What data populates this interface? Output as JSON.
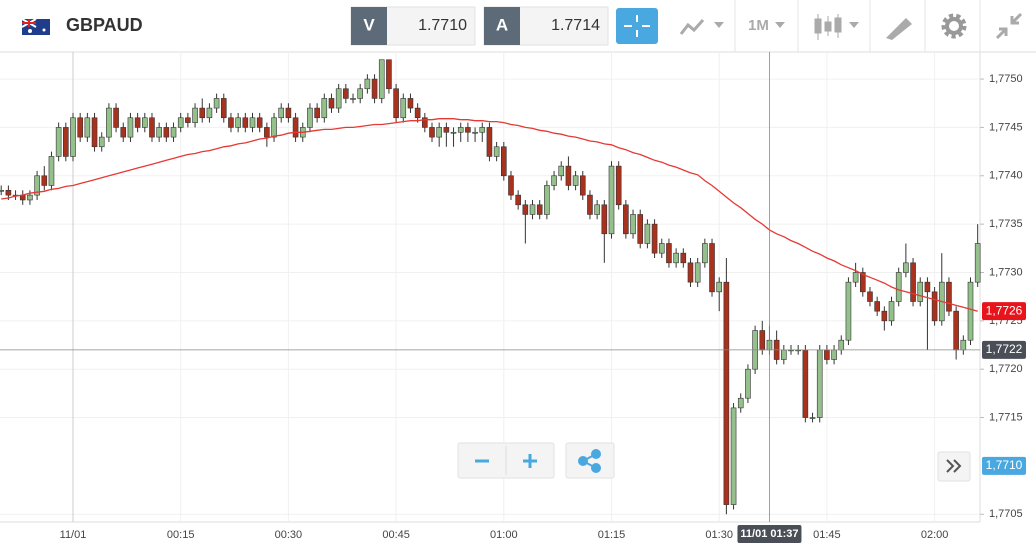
{
  "header": {
    "symbol": "GBPAUD",
    "bid_label": "V",
    "bid": "1.7710",
    "ask_label": "A",
    "ask": "1.7714",
    "timeframe": "1M"
  },
  "chart_data": {
    "type": "candlestick",
    "categories": [
      null,
      null,
      null,
      null,
      null,
      null,
      null,
      null,
      null,
      null,
      "11/01",
      null,
      null,
      null,
      null,
      null,
      null,
      null,
      null,
      null,
      null,
      null,
      null,
      null,
      null,
      "00:15",
      null,
      null,
      null,
      null,
      null,
      null,
      null,
      null,
      null,
      null,
      null,
      null,
      null,
      null,
      "00:30",
      null,
      null,
      null,
      null,
      null,
      null,
      null,
      null,
      null,
      null,
      null,
      null,
      null,
      null,
      "00:45",
      null,
      null,
      null,
      null,
      null,
      null,
      null,
      null,
      null,
      null,
      null,
      null,
      null,
      null,
      "01:00",
      null,
      null,
      null,
      null,
      null,
      null,
      null,
      null,
      null,
      null,
      null,
      null,
      null,
      null,
      "01:15",
      null,
      null,
      null,
      null,
      null,
      null,
      null,
      null,
      null,
      null,
      null,
      null,
      null,
      null,
      "01:30",
      null,
      null,
      null,
      null,
      null,
      null,
      null,
      null,
      null,
      null,
      null,
      null,
      null,
      null,
      "01:45",
      null,
      null,
      null,
      null,
      null,
      null,
      null,
      null,
      null,
      null,
      null,
      null,
      null,
      null,
      "02:00",
      null,
      null,
      null,
      null,
      null,
      null
    ],
    "open": [
      1.77385,
      1.77385,
      1.7738,
      1.7738,
      1.77375,
      1.7738,
      1.774,
      1.7739,
      1.7742,
      1.7745,
      1.7742,
      1.7746,
      1.7744,
      1.7746,
      1.7743,
      1.7744,
      1.7747,
      1.7745,
      1.7744,
      1.7746,
      1.7745,
      1.7746,
      1.7744,
      1.7745,
      1.7744,
      1.7745,
      1.7746,
      1.77455,
      1.7747,
      1.7746,
      1.7747,
      1.7748,
      1.7746,
      1.7745,
      1.7746,
      1.7745,
      1.7746,
      1.7745,
      1.7744,
      1.7746,
      1.7747,
      1.7746,
      1.7744,
      1.7745,
      1.7747,
      1.7746,
      1.7748,
      1.7747,
      1.7749,
      1.7748,
      1.7748,
      1.7749,
      1.775,
      1.7748,
      1.7752,
      1.7749,
      1.7746,
      1.7748,
      1.7747,
      1.7746,
      1.7745,
      1.7744,
      1.7745,
      1.77445,
      1.77445,
      1.7745,
      1.77445,
      1.77445,
      1.7745,
      1.7742,
      1.7743,
      1.774,
      1.7738,
      1.7737,
      1.7736,
      1.7737,
      1.7736,
      1.7739,
      1.774,
      1.7741,
      1.7739,
      1.774,
      1.7738,
      1.7736,
      1.7737,
      1.7734,
      1.7741,
      1.7737,
      1.7734,
      1.7736,
      1.7733,
      1.7735,
      1.7732,
      1.7733,
      1.7731,
      1.7732,
      1.7731,
      1.7729,
      1.7731,
      1.7733,
      1.7728,
      1.7729,
      1.7706,
      1.7716,
      1.7717,
      1.772,
      1.7724,
      1.7722,
      1.7723,
      1.7721,
      1.7722,
      1.7722,
      1.7722,
      1.7715,
      1.7715,
      1.7722,
      1.7721,
      1.7722,
      1.7723,
      1.7729,
      1.773,
      1.7728,
      1.7727,
      1.7726,
      1.7725,
      1.7727,
      1.773,
      1.7731,
      1.7727,
      1.7729,
      1.7728,
      1.7725,
      1.7729,
      1.7726,
      1.7722,
      1.7723,
      1.7729
    ],
    "high": [
      1.7739,
      1.7739,
      1.77385,
      1.77385,
      1.77385,
      1.77405,
      1.7741,
      1.77425,
      1.77455,
      1.77455,
      1.77465,
      1.77465,
      1.77465,
      1.77465,
      1.77445,
      1.77475,
      1.77475,
      1.77455,
      1.77465,
      1.77465,
      1.77465,
      1.77465,
      1.77455,
      1.77455,
      1.77455,
      1.77465,
      1.77465,
      1.77475,
      1.7748,
      1.77475,
      1.77485,
      1.77485,
      1.77465,
      1.77465,
      1.77465,
      1.77465,
      1.77465,
      1.77455,
      1.77465,
      1.77475,
      1.77475,
      1.77465,
      1.77455,
      1.77475,
      1.77475,
      1.77485,
      1.77485,
      1.77495,
      1.77495,
      1.77485,
      1.77495,
      1.77505,
      1.77505,
      1.7752,
      1.7752,
      1.77495,
      1.77485,
      1.77485,
      1.77475,
      1.77465,
      1.77455,
      1.77455,
      1.77455,
      1.7745,
      1.77455,
      1.77455,
      1.7745,
      1.77455,
      1.77455,
      1.77435,
      1.77435,
      1.77405,
      1.77385,
      1.77375,
      1.77375,
      1.77375,
      1.77395,
      1.77405,
      1.77415,
      1.7742,
      1.77405,
      1.77405,
      1.77385,
      1.77375,
      1.77375,
      1.77415,
      1.77415,
      1.77375,
      1.77365,
      1.77365,
      1.77355,
      1.77355,
      1.77335,
      1.77335,
      1.77325,
      1.77325,
      1.77315,
      1.77315,
      1.77335,
      1.77335,
      1.77295,
      1.77315,
      1.77165,
      1.77175,
      1.77205,
      1.77245,
      1.7725,
      1.77245,
      1.7724,
      1.77225,
      1.77225,
      1.77225,
      1.77225,
      1.77155,
      1.77225,
      1.77225,
      1.77225,
      1.77235,
      1.77295,
      1.7731,
      1.77305,
      1.77285,
      1.77275,
      1.77265,
      1.77275,
      1.77305,
      1.7733,
      1.77315,
      1.77295,
      1.77295,
      1.77285,
      1.7732,
      1.77295,
      1.77265,
      1.77235,
      1.77295,
      1.7735
    ],
    "low": [
      1.7738,
      1.77375,
      1.77375,
      1.7737,
      1.7737,
      1.77375,
      1.77385,
      1.77385,
      1.77415,
      1.77415,
      1.77415,
      1.77435,
      1.77435,
      1.77425,
      1.77425,
      1.77435,
      1.77445,
      1.77435,
      1.77435,
      1.77445,
      1.77445,
      1.77435,
      1.77435,
      1.77435,
      1.77435,
      1.77445,
      1.7745,
      1.7745,
      1.77455,
      1.77455,
      1.77465,
      1.77455,
      1.77445,
      1.77445,
      1.77445,
      1.77445,
      1.77445,
      1.7743,
      1.77435,
      1.77455,
      1.77455,
      1.77435,
      1.77435,
      1.77445,
      1.77455,
      1.77455,
      1.77465,
      1.77465,
      1.77475,
      1.77475,
      1.77475,
      1.77485,
      1.77475,
      1.77475,
      1.77485,
      1.77455,
      1.77455,
      1.77465,
      1.77455,
      1.77445,
      1.77435,
      1.7743,
      1.7743,
      1.7743,
      1.77435,
      1.77435,
      1.77435,
      1.77435,
      1.77415,
      1.77415,
      1.77395,
      1.77375,
      1.77365,
      1.7733,
      1.77355,
      1.77355,
      1.77355,
      1.77385,
      1.77395,
      1.77385,
      1.77385,
      1.77375,
      1.77355,
      1.77355,
      1.7731,
      1.77335,
      1.77365,
      1.77335,
      1.77335,
      1.77325,
      1.77325,
      1.77315,
      1.77315,
      1.77305,
      1.77305,
      1.77305,
      1.77285,
      1.77285,
      1.77305,
      1.77275,
      1.7726,
      1.7705,
      1.77055,
      1.77155,
      1.77165,
      1.77195,
      1.77215,
      1.77215,
      1.77205,
      1.77205,
      1.77215,
      1.77215,
      1.77145,
      1.77145,
      1.77145,
      1.77205,
      1.77205,
      1.77215,
      1.77225,
      1.77285,
      1.77275,
      1.77265,
      1.77255,
      1.7724,
      1.77245,
      1.77265,
      1.77295,
      1.77265,
      1.77265,
      1.7722,
      1.77245,
      1.77245,
      1.77255,
      1.7721,
      1.77215,
      1.77225,
      1.77285
    ],
    "close": [
      1.77385,
      1.7738,
      1.7738,
      1.77375,
      1.7738,
      1.774,
      1.7739,
      1.7742,
      1.7745,
      1.7742,
      1.7746,
      1.7744,
      1.7746,
      1.7743,
      1.7744,
      1.7747,
      1.7745,
      1.7744,
      1.7746,
      1.7745,
      1.7746,
      1.7744,
      1.7745,
      1.7744,
      1.7745,
      1.7746,
      1.77455,
      1.7747,
      1.7746,
      1.7747,
      1.7748,
      1.7746,
      1.7745,
      1.7746,
      1.7745,
      1.7746,
      1.7745,
      1.7744,
      1.7746,
      1.7747,
      1.7746,
      1.7744,
      1.7745,
      1.7747,
      1.7746,
      1.7748,
      1.7747,
      1.7749,
      1.7748,
      1.7748,
      1.7749,
      1.775,
      1.7748,
      1.7752,
      1.7749,
      1.7746,
      1.7748,
      1.7747,
      1.7746,
      1.7745,
      1.7744,
      1.7745,
      1.77445,
      1.77445,
      1.7745,
      1.77445,
      1.77445,
      1.7745,
      1.7742,
      1.7743,
      1.774,
      1.7738,
      1.7737,
      1.7736,
      1.7737,
      1.7736,
      1.7739,
      1.774,
      1.7741,
      1.7739,
      1.774,
      1.7738,
      1.7736,
      1.7737,
      1.7734,
      1.7741,
      1.7737,
      1.7734,
      1.7736,
      1.7733,
      1.7735,
      1.7732,
      1.7733,
      1.7731,
      1.7732,
      1.7731,
      1.7729,
      1.7731,
      1.7733,
      1.7728,
      1.7729,
      1.7706,
      1.7716,
      1.7717,
      1.772,
      1.7724,
      1.7722,
      1.7723,
      1.7721,
      1.7722,
      1.7722,
      1.7722,
      1.7715,
      1.7715,
      1.7722,
      1.7721,
      1.7722,
      1.7723,
      1.7729,
      1.773,
      1.7728,
      1.7727,
      1.7726,
      1.7725,
      1.7727,
      1.773,
      1.7731,
      1.7727,
      1.7729,
      1.7728,
      1.7725,
      1.7729,
      1.7726,
      1.7722,
      1.7723,
      1.7729,
      1.7733
    ],
    "ma": [
      1.77376,
      1.77377,
      1.77379,
      1.7738,
      1.77382,
      1.77383,
      1.77384,
      1.77386,
      1.77387,
      1.77389,
      1.7739,
      1.77392,
      1.77394,
      1.77396,
      1.77398,
      1.774,
      1.77402,
      1.77404,
      1.77406,
      1.77408,
      1.7741,
      1.77412,
      1.77414,
      1.77416,
      1.77418,
      1.7742,
      1.77422,
      1.77423,
      1.77425,
      1.77426,
      1.77428,
      1.7743,
      1.77431,
      1.77433,
      1.77434,
      1.77436,
      1.77438,
      1.77439,
      1.77441,
      1.77442,
      1.77444,
      1.77445,
      1.77445,
      1.77446,
      1.77447,
      1.77448,
      1.77448,
      1.77449,
      1.7745,
      1.7745,
      1.77451,
      1.77452,
      1.77453,
      1.77453,
      1.77454,
      1.77455,
      1.77456,
      1.77457,
      1.77457,
      1.77458,
      1.77458,
      1.77459,
      1.77459,
      1.77459,
      1.77458,
      1.77458,
      1.77457,
      1.77457,
      1.77456,
      1.77456,
      1.77455,
      1.77453,
      1.77452,
      1.7745,
      1.77449,
      1.77447,
      1.77446,
      1.77444,
      1.77443,
      1.77441,
      1.7744,
      1.77438,
      1.77436,
      1.77435,
      1.77433,
      1.77432,
      1.77429,
      1.77427,
      1.77424,
      1.77422,
      1.77419,
      1.77416,
      1.77414,
      1.77411,
      1.77409,
      1.77406,
      1.77403,
      1.77401,
      1.77395,
      1.7739,
      1.77384,
      1.77378,
      1.77372,
      1.77367,
      1.77361,
      1.77355,
      1.7735,
      1.77344,
      1.7734,
      1.77337,
      1.77333,
      1.7733,
      1.77326,
      1.77322,
      1.77319,
      1.77315,
      1.77312,
      1.77308,
      1.77305,
      1.77302,
      1.77298,
      1.77295,
      1.77292,
      1.77289,
      1.77285,
      1.77282,
      1.7728,
      1.77278,
      1.77276,
      1.77274,
      1.77272,
      1.7727,
      1.77268,
      1.77266,
      1.77264,
      1.77262,
      1.7726
    ],
    "up_color": "#94c08c",
    "down_color": "#a8321e",
    "ma_color": "#e53935",
    "ylim": [
      1.77042,
      1.77528
    ],
    "yticks": [
      {
        "value": 1.7705,
        "label": "1,7705"
      },
      {
        "value": 1.7715,
        "label": "1,7715"
      },
      {
        "value": 1.772,
        "label": "1,7720"
      },
      {
        "value": 1.7725,
        "label": "1,7725"
      },
      {
        "value": 1.773,
        "label": "1,7730"
      },
      {
        "value": 1.7735,
        "label": "1,7735"
      },
      {
        "value": 1.774,
        "label": "1,7740"
      },
      {
        "value": 1.7745,
        "label": "1,7745"
      },
      {
        "value": 1.775,
        "label": "1,7750"
      }
    ],
    "grid": true,
    "price_tags": [
      {
        "value": 1.7726,
        "label": "1,7726",
        "color": "#e8141c"
      },
      {
        "value": 1.771,
        "label": "1,7710",
        "color": "#4aa8e0"
      }
    ],
    "crosshair": {
      "value": 1.7722,
      "label": "1,7722",
      "index": 107,
      "time_label": "11/01 01:37"
    }
  }
}
